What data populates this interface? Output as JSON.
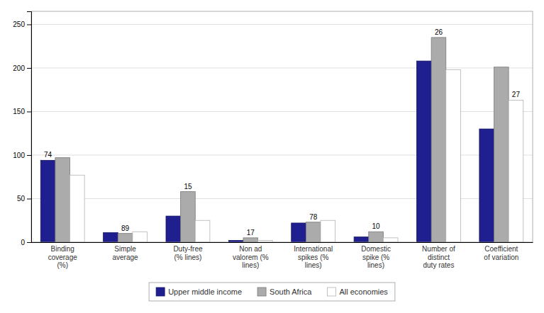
{
  "chart_data": {
    "type": "bar",
    "categories": [
      "Binding\ncoverage\n(%)",
      "Simple\naverage",
      "Duty-free\n(% lines)",
      "Non ad\nvalorem (%\nlines)",
      "International\nspikes (%\nlines)",
      "Domestic\nspike (%\nlines)",
      "Number of\ndistinct\nduty rates",
      "Coefficient\nof variation"
    ],
    "series": [
      {
        "name": "Upper middle income",
        "color": "#1F1F8F",
        "values": [
          94,
          11,
          30,
          2,
          22,
          6,
          208,
          130
        ]
      },
      {
        "name": "South Africa",
        "color": "#ABABAB",
        "values": [
          97,
          10,
          58,
          5,
          23,
          12,
          235,
          201
        ]
      },
      {
        "name": "All economies",
        "color": "#FFFFFF",
        "values": [
          77,
          12,
          25,
          2,
          25,
          5,
          198,
          163
        ]
      }
    ],
    "annotations": [
      {
        "text": "74",
        "category": "Binding\ncoverage\n(%)",
        "series": "Upper middle income"
      },
      {
        "text": "89",
        "category": "Simple\naverage",
        "series": "South Africa"
      },
      {
        "text": "15",
        "category": "Duty-free\n(% lines)",
        "series": "South Africa"
      },
      {
        "text": "17",
        "category": "Non ad\nvalorem (%\nlines)",
        "series": "South Africa"
      },
      {
        "text": "78",
        "category": "International\nspikes (%\nlines)",
        "series": "South Africa"
      },
      {
        "text": "10",
        "category": "Domestic\nspike (%\nlines)",
        "series": "South Africa"
      },
      {
        "text": "26",
        "category": "Number of\ndistinct\nduty rates",
        "series": "South Africa"
      },
      {
        "text": "27",
        "category": "Coefficient\nof variation",
        "series": "All economies"
      }
    ],
    "ylim": [
      0,
      265
    ],
    "yticks": [
      0,
      50,
      100,
      150,
      200,
      250
    ],
    "grid": true,
    "legend": "bottom"
  }
}
